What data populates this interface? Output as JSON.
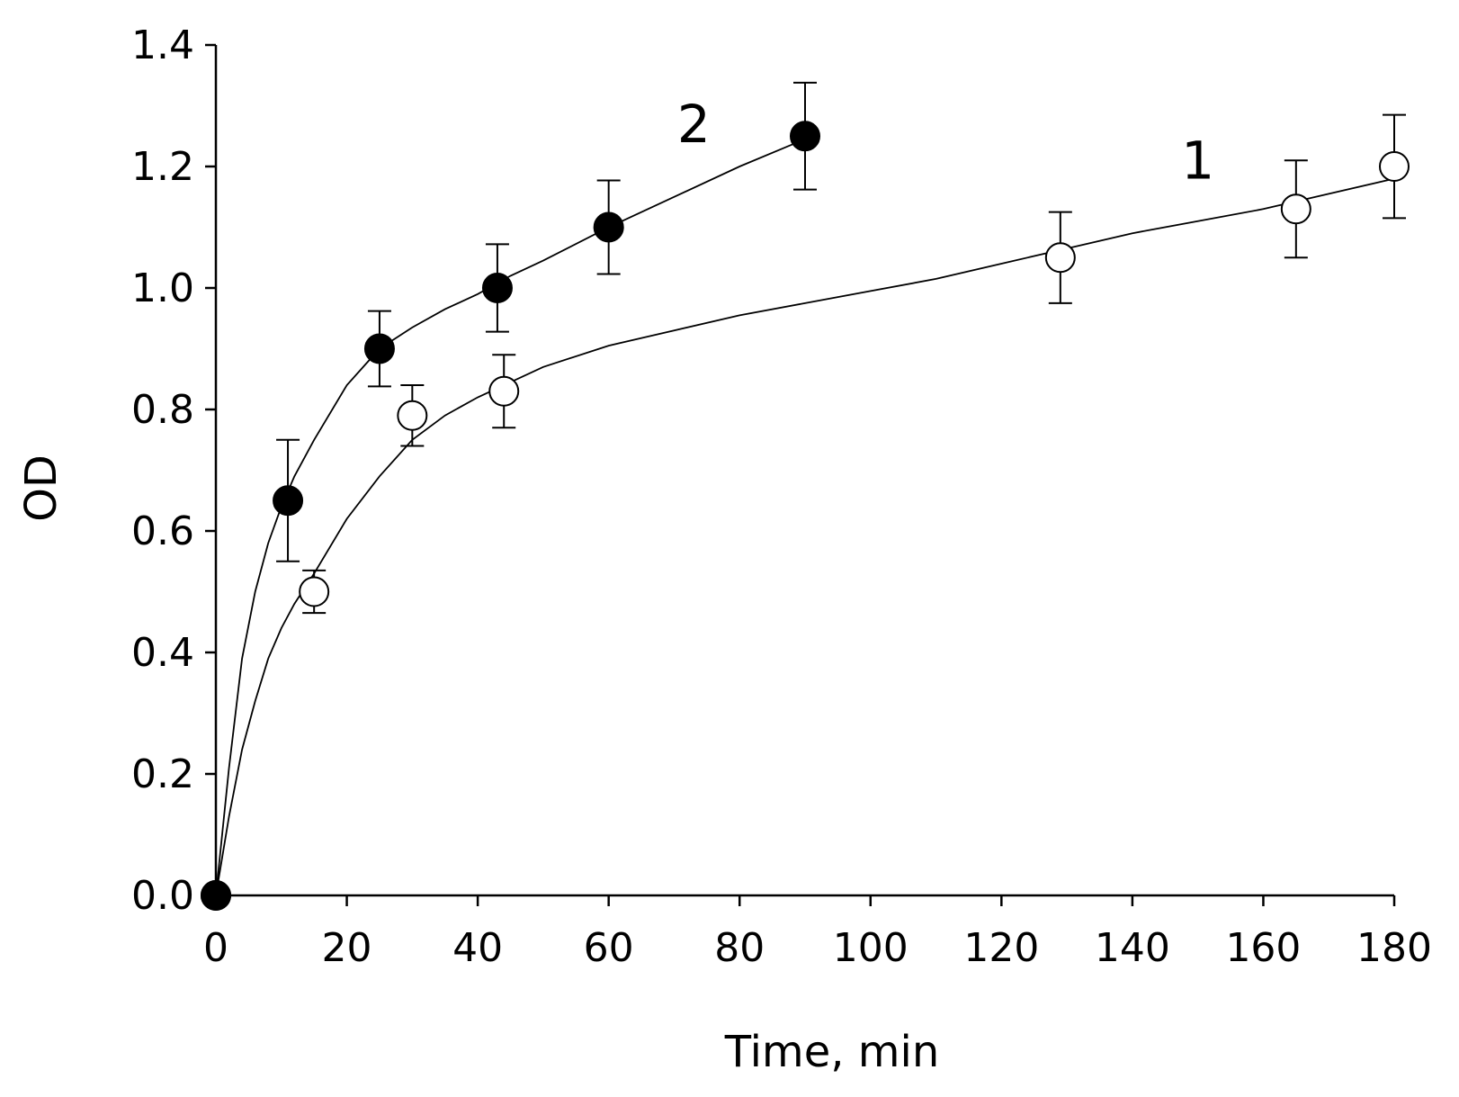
{
  "chart_data": {
    "type": "scatter",
    "title": "",
    "xlabel": "Time, min",
    "ylabel": "OD",
    "xlim": [
      0,
      180
    ],
    "ylim": [
      0,
      1.4
    ],
    "x_ticks": [
      0,
      20,
      40,
      60,
      80,
      100,
      120,
      140,
      160,
      180
    ],
    "y_ticks": [
      "0.0",
      "0.2",
      "0.4",
      "0.6",
      "0.8",
      "1.0",
      "1.2",
      "1.4"
    ],
    "grid": false,
    "series": [
      {
        "name": "1",
        "marker": "open-circle",
        "x": [
          0,
          15,
          30,
          44,
          129,
          165,
          180
        ],
        "y": [
          0.0,
          0.5,
          0.79,
          0.83,
          1.05,
          1.13,
          1.2
        ],
        "error": [
          0.0,
          0.035,
          0.05,
          0.06,
          0.075,
          0.08,
          0.085
        ],
        "fit_x": [
          0,
          2,
          4,
          6,
          8,
          10,
          12,
          15,
          20,
          25,
          30,
          35,
          40,
          50,
          60,
          70,
          80,
          90,
          100,
          110,
          120,
          130,
          140,
          150,
          160,
          170,
          180
        ],
        "fit_y": [
          0.0,
          0.13,
          0.24,
          0.32,
          0.39,
          0.44,
          0.48,
          0.53,
          0.62,
          0.69,
          0.75,
          0.79,
          0.82,
          0.87,
          0.905,
          0.93,
          0.955,
          0.975,
          0.995,
          1.015,
          1.04,
          1.065,
          1.09,
          1.11,
          1.13,
          1.155,
          1.18
        ],
        "label_position": [
          150,
          1.21
        ]
      },
      {
        "name": "2",
        "marker": "filled-circle",
        "x": [
          0,
          11,
          25,
          43,
          60,
          90
        ],
        "y": [
          0.0,
          0.65,
          0.9,
          1.0,
          1.1,
          1.25
        ],
        "error": [
          0.0,
          0.1,
          0.062,
          0.072,
          0.077,
          0.088
        ],
        "fit_x": [
          0,
          2,
          4,
          6,
          8,
          10,
          12,
          15,
          20,
          25,
          30,
          35,
          40,
          45,
          50,
          60,
          70,
          80,
          90
        ],
        "fit_y": [
          0.0,
          0.21,
          0.39,
          0.5,
          0.58,
          0.64,
          0.69,
          0.75,
          0.84,
          0.9,
          0.935,
          0.965,
          0.99,
          1.02,
          1.045,
          1.1,
          1.15,
          1.2,
          1.245
        ],
        "label_position": [
          73,
          1.27
        ]
      }
    ]
  }
}
